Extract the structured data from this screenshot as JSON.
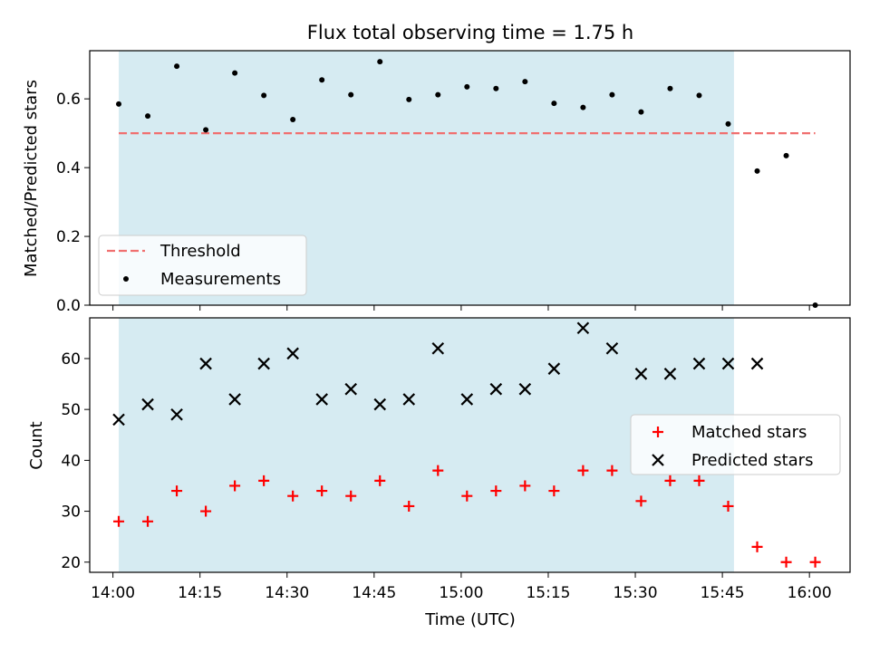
{
  "chart_data": [
    {
      "type": "scatter",
      "title": "Flux total observing time = 1.75 h",
      "xlabel": "",
      "ylabel": "Matched/Predicted stars",
      "xlim": [
        "13:56",
        "16:07"
      ],
      "ylim": [
        0,
        0.74
      ],
      "yticks": [
        0.0,
        0.2,
        0.4,
        0.6
      ],
      "ytick_labels": [
        "0.0",
        "0.2",
        "0.4",
        "0.6"
      ],
      "shaded_interval": [
        "14:01",
        "15:47"
      ],
      "threshold": {
        "label": "Threshold",
        "value": 0.5,
        "x_range": [
          "14:01",
          "16:01"
        ],
        "color": "#f07070"
      },
      "series": [
        {
          "name": "Measurements",
          "x": [
            "14:01",
            "14:06",
            "14:11",
            "14:16",
            "14:21",
            "14:26",
            "14:31",
            "14:36",
            "14:41",
            "14:46",
            "14:51",
            "14:56",
            "15:01",
            "15:06",
            "15:11",
            "15:16",
            "15:21",
            "15:26",
            "15:31",
            "15:36",
            "15:41",
            "15:46",
            "15:51",
            "15:56",
            "16:01"
          ],
          "y": [
            0.585,
            0.55,
            0.695,
            0.51,
            0.675,
            0.61,
            0.54,
            0.655,
            0.612,
            0.708,
            0.598,
            0.612,
            0.635,
            0.63,
            0.65,
            0.587,
            0.575,
            0.612,
            0.562,
            0.63,
            0.61,
            0.527,
            0.39,
            0.435,
            0.0
          ],
          "color": "#000000"
        }
      ],
      "legend": {
        "entries": [
          "Threshold",
          "Measurements"
        ],
        "position": "lower-left"
      }
    },
    {
      "type": "scatter",
      "title": "",
      "xlabel": "Time (UTC)",
      "ylabel": "Count",
      "xlim": [
        "13:56",
        "16:07"
      ],
      "ylim": [
        18,
        68
      ],
      "xticks": [
        "14:00",
        "14:15",
        "14:30",
        "14:45",
        "15:00",
        "15:15",
        "15:30",
        "15:45",
        "16:00"
      ],
      "yticks": [
        20,
        30,
        40,
        50,
        60
      ],
      "ytick_labels": [
        "20",
        "30",
        "40",
        "50",
        "60"
      ],
      "shaded_interval": [
        "14:01",
        "15:47"
      ],
      "series": [
        {
          "name": "Matched stars",
          "marker": "plus",
          "color": "#ff0000",
          "x": [
            "14:01",
            "14:06",
            "14:11",
            "14:16",
            "14:21",
            "14:26",
            "14:31",
            "14:36",
            "14:41",
            "14:46",
            "14:51",
            "14:56",
            "15:01",
            "15:06",
            "15:11",
            "15:16",
            "15:21",
            "15:26",
            "15:31",
            "15:36",
            "15:41",
            "15:46",
            "15:51",
            "15:56",
            "16:01"
          ],
          "y": [
            28,
            28,
            34,
            30,
            35,
            36,
            33,
            34,
            33,
            36,
            31,
            38,
            33,
            34,
            35,
            34,
            38,
            38,
            32,
            36,
            36,
            31,
            23,
            20,
            20
          ]
        },
        {
          "name": "Predicted stars",
          "marker": "x",
          "color": "#000000",
          "x": [
            "14:01",
            "14:06",
            "14:11",
            "14:16",
            "14:21",
            "14:26",
            "14:31",
            "14:36",
            "14:41",
            "14:46",
            "14:51",
            "14:56",
            "15:01",
            "15:06",
            "15:11",
            "15:16",
            "15:21",
            "15:26",
            "15:31",
            "15:36",
            "15:41",
            "15:46",
            "15:51"
          ],
          "y": [
            48,
            51,
            49,
            59,
            52,
            59,
            61,
            52,
            54,
            51,
            52,
            62,
            52,
            54,
            54,
            58,
            66,
            62,
            57,
            57,
            59,
            59,
            59
          ]
        }
      ],
      "legend": {
        "entries": [
          "Matched stars",
          "Predicted stars"
        ],
        "position": "center-right"
      }
    }
  ],
  "colors": {
    "shade": "#add8e6",
    "threshold": "#f07070",
    "matched": "#ff0000",
    "predicted": "#000000"
  }
}
